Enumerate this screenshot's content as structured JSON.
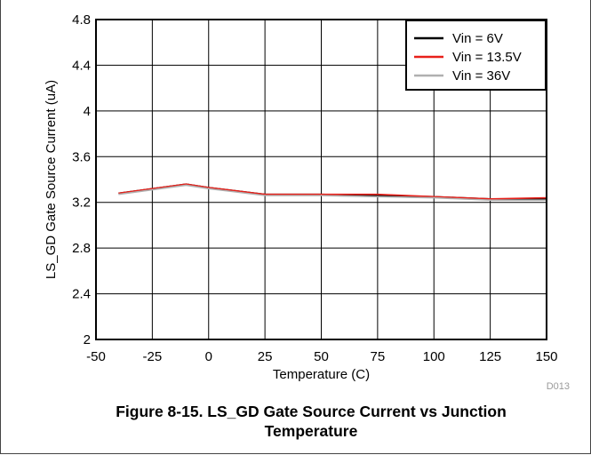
{
  "chart_data": {
    "type": "line",
    "xlabel": "Temperature (C)",
    "ylabel": "LS_GD Gate Source Current (uA)",
    "xlim": [
      -50,
      150
    ],
    "ylim": [
      2,
      4.8
    ],
    "xticks": [
      "-50",
      "-25",
      "0",
      "25",
      "50",
      "75",
      "100",
      "125",
      "150"
    ],
    "yticks": [
      "2",
      "2.4",
      "2.8",
      "3.2",
      "3.6",
      "4",
      "4.4",
      "4.8"
    ],
    "x": [
      -40,
      -10,
      0,
      25,
      50,
      75,
      100,
      125,
      150
    ],
    "series": [
      {
        "name": "Vin = 6V",
        "color": "#000000",
        "values": [
          3.28,
          3.36,
          3.33,
          3.27,
          3.27,
          3.26,
          3.25,
          3.23,
          3.23
        ]
      },
      {
        "name": "Vin = 13.5V",
        "color": "#e8201a",
        "values": [
          3.28,
          3.36,
          3.33,
          3.27,
          3.27,
          3.27,
          3.25,
          3.23,
          3.24
        ]
      },
      {
        "name": "Vin = 36V",
        "color": "#b0b0b0",
        "values": [
          3.27,
          3.35,
          3.32,
          3.26,
          3.26,
          3.25,
          3.24,
          3.22,
          3.22
        ]
      }
    ],
    "grid": true,
    "legend": "top-right",
    "code": "D013"
  },
  "caption": {
    "line1": "Figure 8-15. LS_GD Gate Source Current vs Junction",
    "line2": "Temperature"
  }
}
